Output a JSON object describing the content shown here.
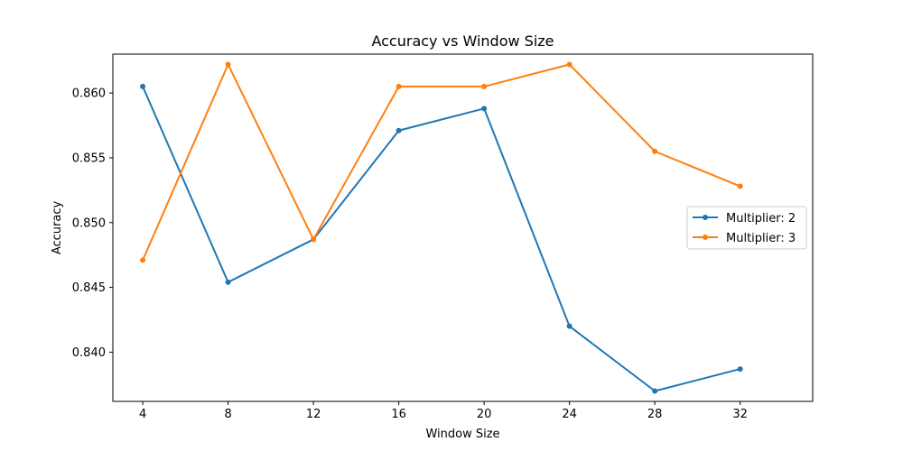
{
  "chart_data": {
    "type": "line",
    "title": "Accuracy vs Window Size",
    "xlabel": "Window Size",
    "ylabel": "Accuracy",
    "x": [
      4,
      8,
      12,
      16,
      20,
      24,
      28,
      32
    ],
    "xticks": [
      "4",
      "8",
      "12",
      "16",
      "20",
      "24",
      "28",
      "32"
    ],
    "yticks": [
      "0.840",
      "0.845",
      "0.850",
      "0.855",
      "0.860"
    ],
    "ytick_values": [
      0.84,
      0.845,
      0.85,
      0.855,
      0.86
    ],
    "xlim": [
      2.6,
      35.4
    ],
    "ylim": [
      0.8362,
      0.863
    ],
    "grid": false,
    "legend_position": "center-right",
    "series": [
      {
        "name": "Multiplier: 2",
        "color": "#1f77b4",
        "values": [
          0.8605,
          0.8454,
          0.8487,
          0.8571,
          0.8588,
          0.842,
          0.837,
          0.8387
        ]
      },
      {
        "name": "Multiplier: 3",
        "color": "#ff7f0e",
        "values": [
          0.8471,
          0.8622,
          0.8487,
          0.8605,
          0.8605,
          0.8622,
          0.8555,
          0.8528
        ]
      }
    ]
  }
}
